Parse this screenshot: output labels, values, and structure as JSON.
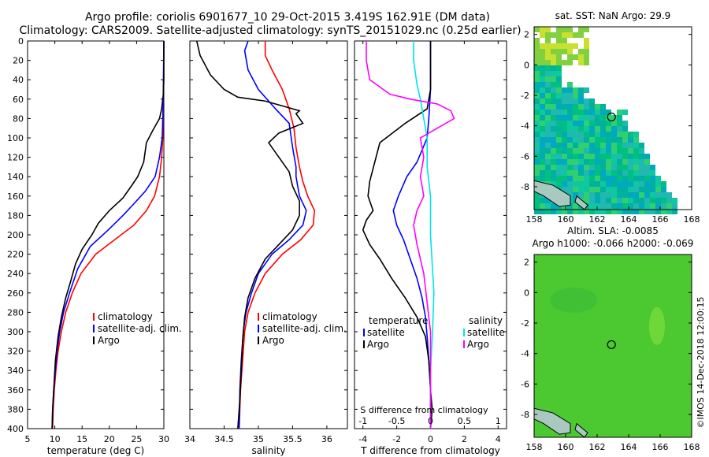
{
  "header": {
    "line1": "Argo profile: coriolis 6901677_10 29-Oct-2015 3.419S 162.91E (DM data)",
    "line2": "Climatology: CARS2009. Satellite-adjusted climatology: synTS_20151029.nc (0.25d earlier)"
  },
  "colors": {
    "climatology": "#ff0000",
    "satellite": "#0000ff",
    "argo": "#000000",
    "s_diff_sat": "#00e5e5",
    "s_diff_argo": "#ff00ff"
  },
  "chart_data": [
    {
      "type": "line",
      "title": "",
      "xlabel": "temperature (deg C)",
      "ylabel": "",
      "xlim": [
        5,
        30
      ],
      "ylim": [
        400,
        0
      ],
      "xticks": [
        5,
        10,
        15,
        20,
        25,
        30
      ],
      "yticks": [
        0,
        20,
        40,
        60,
        80,
        100,
        120,
        140,
        160,
        180,
        200,
        220,
        240,
        260,
        280,
        300,
        320,
        340,
        360,
        380,
        400
      ],
      "legend": [
        "climatology",
        "satellite-adj. clim.",
        "Argo"
      ],
      "series": [
        {
          "name": "climatology",
          "points": [
            [
              30,
              0
            ],
            [
              29.9,
              60
            ],
            [
              29.8,
              100
            ],
            [
              29.6,
              120
            ],
            [
              29.2,
              140
            ],
            [
              28.3,
              160
            ],
            [
              26.8,
              175
            ],
            [
              24.5,
              190
            ],
            [
              21.0,
              205
            ],
            [
              17.5,
              220
            ],
            [
              14.8,
              240
            ],
            [
              13.2,
              260
            ],
            [
              12.0,
              280
            ],
            [
              11.2,
              300
            ],
            [
              10.6,
              320
            ],
            [
              10.2,
              340
            ],
            [
              9.9,
              360
            ],
            [
              9.7,
              380
            ],
            [
              9.6,
              400
            ]
          ]
        },
        {
          "name": "satellite-adj. clim.",
          "points": [
            [
              30,
              0
            ],
            [
              29.9,
              60
            ],
            [
              29.7,
              100
            ],
            [
              29.2,
              120
            ],
            [
              28.4,
              140
            ],
            [
              26.6,
              155
            ],
            [
              24.5,
              168
            ],
            [
              22.5,
              180
            ],
            [
              19.8,
              195
            ],
            [
              16.5,
              212
            ],
            [
              14.2,
              235
            ],
            [
              12.7,
              260
            ],
            [
              11.6,
              280
            ],
            [
              10.9,
              300
            ],
            [
              10.4,
              320
            ],
            [
              10.1,
              340
            ],
            [
              9.8,
              360
            ],
            [
              9.6,
              380
            ],
            [
              9.5,
              400
            ]
          ]
        },
        {
          "name": "Argo",
          "points": [
            [
              30,
              0
            ],
            [
              30,
              40
            ],
            [
              29.9,
              55
            ],
            [
              29.6,
              70
            ],
            [
              29.2,
              80
            ],
            [
              28.0,
              92
            ],
            [
              26.8,
              105
            ],
            [
              26.3,
              125
            ],
            [
              25.2,
              140
            ],
            [
              24.0,
              150
            ],
            [
              22.5,
              162
            ],
            [
              20.0,
              175
            ],
            [
              18.0,
              188
            ],
            [
              16.8,
              200
            ],
            [
              15.0,
              215
            ],
            [
              13.8,
              230
            ],
            [
              12.8,
              250
            ],
            [
              12.0,
              265
            ],
            [
              11.2,
              285
            ],
            [
              10.6,
              305
            ],
            [
              10.1,
              330
            ],
            [
              9.9,
              350
            ],
            [
              9.6,
              380
            ],
            [
              9.5,
              400
            ]
          ]
        }
      ]
    },
    {
      "type": "line",
      "title": "",
      "xlabel": "salinity",
      "ylabel": "",
      "xlim": [
        34,
        36.3
      ],
      "ylim": [
        400,
        0
      ],
      "xticks": [
        34,
        34.5,
        35,
        35.5,
        36
      ],
      "yticks": [
        0,
        20,
        40,
        60,
        80,
        100,
        120,
        140,
        160,
        180,
        200,
        220,
        240,
        260,
        280,
        300,
        320,
        340,
        360,
        380,
        400
      ],
      "legend": [
        "climatology",
        "satellite-adj. clim.",
        "Argo"
      ],
      "series": [
        {
          "name": "climatology",
          "points": [
            [
              35.1,
              0
            ],
            [
              35.1,
              15
            ],
            [
              35.2,
              30
            ],
            [
              35.35,
              50
            ],
            [
              35.45,
              70
            ],
            [
              35.52,
              90
            ],
            [
              35.55,
              110
            ],
            [
              35.6,
              130
            ],
            [
              35.65,
              145
            ],
            [
              35.72,
              160
            ],
            [
              35.82,
              175
            ],
            [
              35.8,
              190
            ],
            [
              35.62,
              205
            ],
            [
              35.35,
              220
            ],
            [
              35.1,
              240
            ],
            [
              34.95,
              260
            ],
            [
              34.85,
              280
            ],
            [
              34.8,
              300
            ],
            [
              34.77,
              330
            ],
            [
              34.74,
              360
            ],
            [
              34.72,
              400
            ]
          ]
        },
        {
          "name": "satellite-adj. clim.",
          "points": [
            [
              34.85,
              0
            ],
            [
              34.8,
              10
            ],
            [
              34.85,
              30
            ],
            [
              35.0,
              50
            ],
            [
              35.25,
              70
            ],
            [
              35.45,
              85
            ],
            [
              35.5,
              110
            ],
            [
              35.55,
              130
            ],
            [
              35.55,
              140
            ],
            [
              35.6,
              160
            ],
            [
              35.7,
              175
            ],
            [
              35.65,
              190
            ],
            [
              35.45,
              205
            ],
            [
              35.2,
              220
            ],
            [
              35.0,
              240
            ],
            [
              34.9,
              260
            ],
            [
              34.82,
              280
            ],
            [
              34.78,
              300
            ],
            [
              34.75,
              330
            ],
            [
              34.73,
              360
            ],
            [
              34.72,
              400
            ]
          ]
        },
        {
          "name": "Argo",
          "points": [
            [
              34.1,
              0
            ],
            [
              34.15,
              15
            ],
            [
              34.3,
              35
            ],
            [
              34.5,
              50
            ],
            [
              34.7,
              58
            ],
            [
              35.1,
              62
            ],
            [
              35.4,
              68
            ],
            [
              35.6,
              72
            ],
            [
              35.55,
              75
            ],
            [
              35.65,
              85
            ],
            [
              35.3,
              95
            ],
            [
              35.15,
              105
            ],
            [
              35.3,
              120
            ],
            [
              35.45,
              135
            ],
            [
              35.5,
              150
            ],
            [
              35.6,
              165
            ],
            [
              35.6,
              180
            ],
            [
              35.5,
              195
            ],
            [
              35.3,
              210
            ],
            [
              35.1,
              225
            ],
            [
              34.95,
              245
            ],
            [
              34.85,
              265
            ],
            [
              34.8,
              285
            ],
            [
              34.77,
              310
            ],
            [
              34.75,
              340
            ],
            [
              34.73,
              370
            ],
            [
              34.7,
              400
            ]
          ]
        }
      ]
    },
    {
      "type": "line",
      "title": "",
      "xlabel": "T difference from climatology",
      "ylabel": "",
      "top_axis_label": "S difference from climatology",
      "xlim": [
        -4.5,
        4.5
      ],
      "ylim": [
        400,
        0
      ],
      "xticks": [
        -4,
        -2,
        0,
        2,
        4
      ],
      "s_xticks": [
        -1,
        -0.5,
        0,
        0.5,
        1
      ],
      "yticks": [
        0,
        20,
        40,
        60,
        80,
        100,
        120,
        140,
        160,
        180,
        200,
        220,
        240,
        260,
        280,
        300,
        320,
        340,
        360,
        380,
        400
      ],
      "legend_t": [
        "temperature",
        "satellite",
        "Argo"
      ],
      "legend_s": [
        "salinity",
        "satellite",
        "Argo"
      ],
      "series": [
        {
          "name": "T satellite",
          "points": [
            [
              0,
              0
            ],
            [
              0,
              50
            ],
            [
              -0.1,
              80
            ],
            [
              -0.2,
              100
            ],
            [
              -0.8,
              125
            ],
            [
              -1.4,
              140
            ],
            [
              -1.9,
              160
            ],
            [
              -2.2,
              175
            ],
            [
              -2.0,
              190
            ],
            [
              -1.6,
              205
            ],
            [
              -1.2,
              225
            ],
            [
              -0.8,
              245
            ],
            [
              -0.5,
              265
            ],
            [
              -0.3,
              285
            ],
            [
              -0.2,
              305
            ],
            [
              -0.1,
              330
            ],
            [
              0,
              360
            ],
            [
              0,
              400
            ]
          ]
        },
        {
          "name": "T Argo",
          "points": [
            [
              0,
              0
            ],
            [
              0,
              50
            ],
            [
              -0.2,
              70
            ],
            [
              -1.5,
              85
            ],
            [
              -3.0,
              105
            ],
            [
              -3.3,
              125
            ],
            [
              -3.6,
              145
            ],
            [
              -3.7,
              160
            ],
            [
              -3.4,
              175
            ],
            [
              -3.8,
              185
            ],
            [
              -4.0,
              195
            ],
            [
              -3.6,
              210
            ],
            [
              -3.0,
              225
            ],
            [
              -2.3,
              245
            ],
            [
              -1.5,
              265
            ],
            [
              -0.8,
              285
            ],
            [
              -0.3,
              305
            ],
            [
              -0.1,
              330
            ],
            [
              0,
              360
            ],
            [
              0.1,
              380
            ],
            [
              0,
              400
            ]
          ]
        },
        {
          "name": "S satellite",
          "points": [
            [
              -0.25,
              0
            ],
            [
              -0.25,
              20
            ],
            [
              -0.2,
              45
            ],
            [
              -0.15,
              60
            ],
            [
              -0.1,
              80
            ],
            [
              -0.05,
              100
            ],
            [
              -0.05,
              130
            ],
            [
              0,
              160
            ],
            [
              0,
              200
            ],
            [
              0.05,
              260
            ],
            [
              0.03,
              300
            ],
            [
              0,
              340
            ],
            [
              0,
              400
            ]
          ]
        },
        {
          "name": "S Argo",
          "points": [
            [
              -0.95,
              0
            ],
            [
              -0.95,
              20
            ],
            [
              -0.9,
              40
            ],
            [
              -0.6,
              55
            ],
            [
              -0.3,
              60
            ],
            [
              0.1,
              65
            ],
            [
              0.3,
              72
            ],
            [
              0.35,
              80
            ],
            [
              0.1,
              90
            ],
            [
              -0.15,
              100
            ],
            [
              -0.1,
              120
            ],
            [
              -0.15,
              140
            ],
            [
              -0.1,
              160
            ],
            [
              -0.2,
              175
            ],
            [
              -0.25,
              190
            ],
            [
              -0.2,
              210
            ],
            [
              -0.1,
              240
            ],
            [
              -0.05,
              270
            ],
            [
              0,
              300
            ],
            [
              0,
              340
            ],
            [
              0,
              400
            ]
          ]
        }
      ]
    },
    {
      "type": "heatmap",
      "title": "sat. SST: NaN Argo: 29.9",
      "xlim": [
        158,
        168
      ],
      "ylim": [
        -9.5,
        2.5
      ],
      "xticks": [
        158,
        160,
        162,
        164,
        166,
        168
      ],
      "yticks": [
        -8,
        -6,
        -4,
        -2,
        0,
        2
      ],
      "marker": {
        "lon": 162.91,
        "lat": -3.419
      }
    },
    {
      "type": "heatmap",
      "title": "Altim. SLA: -0.0085",
      "subtitle": "Argo h1000: -0.066 h2000: -0.069",
      "xlim": [
        158,
        168
      ],
      "ylim": [
        -9.5,
        2.5
      ],
      "xticks": [
        158,
        160,
        162,
        164,
        166,
        168
      ],
      "yticks": [
        -8,
        -6,
        -4,
        -2,
        0,
        2
      ],
      "marker": {
        "lon": 162.91,
        "lat": -3.419
      }
    }
  ],
  "footer": {
    "credit": "©IMOS 14-Dec-2018 12:00:15"
  }
}
